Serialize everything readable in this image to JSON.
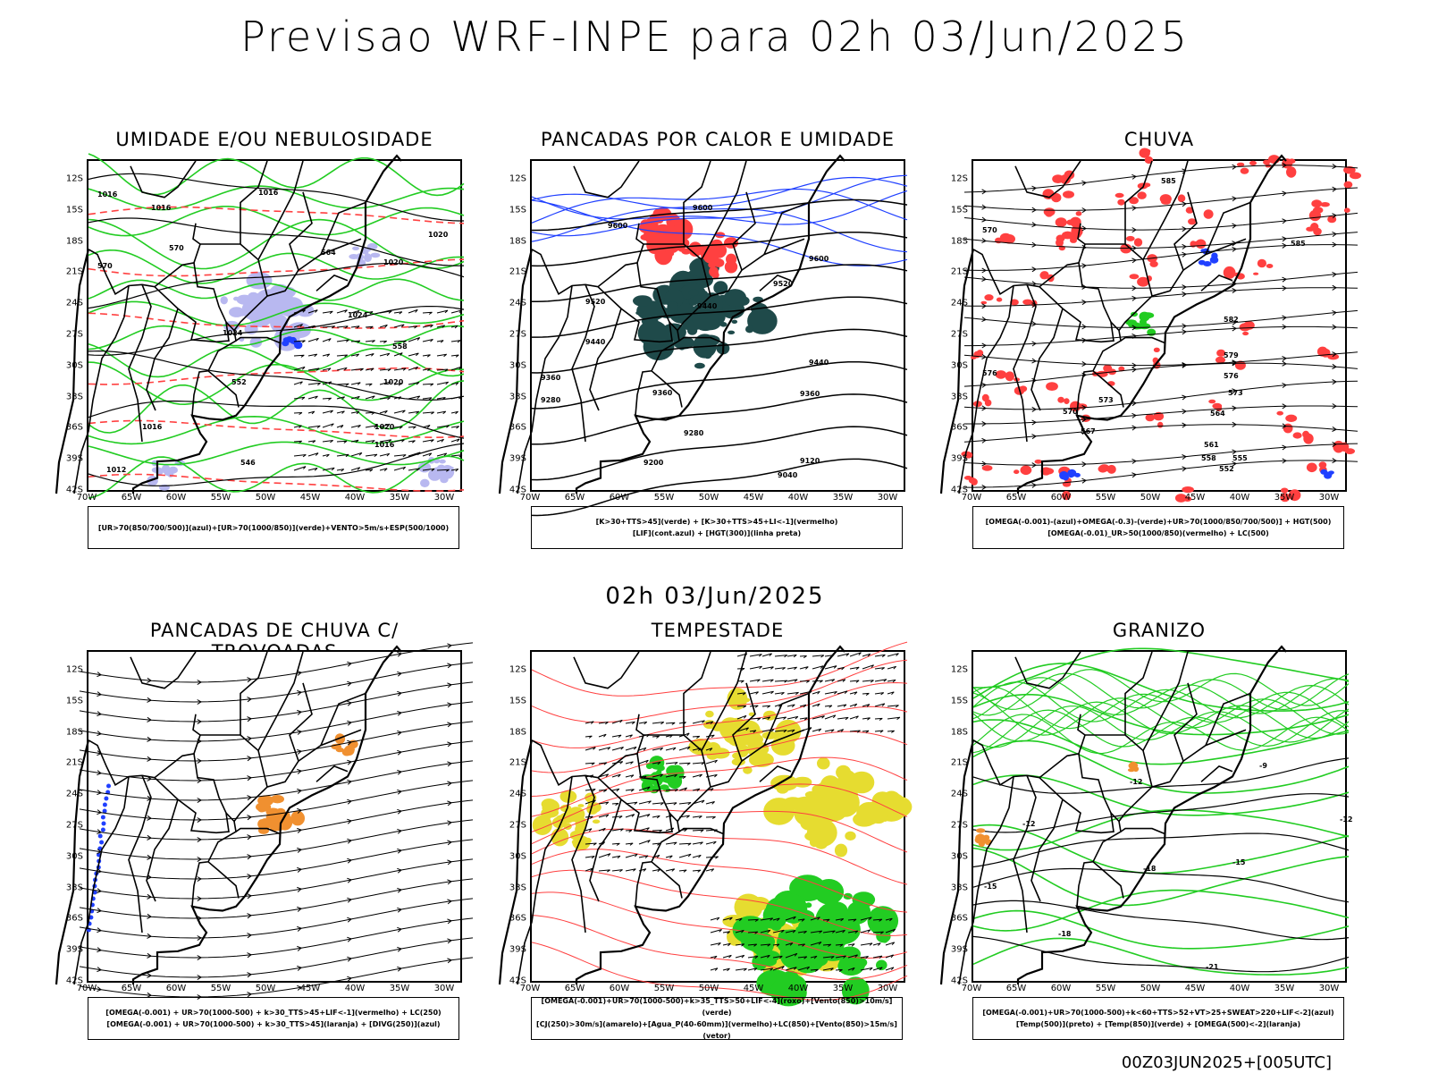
{
  "main_title": "Previsao WRF-INPE  para 02h 03/Jun/2025",
  "mid_stamp": "02h 03/Jun/2025",
  "run_stamp": "00Z03JUN2025+[005UTC]",
  "lat_ticks": [
    "12S",
    "15S",
    "18S",
    "21S",
    "24S",
    "27S",
    "30S",
    "33S",
    "36S",
    "39S",
    "42S"
  ],
  "lon_ticks": [
    "70W",
    "65W",
    "60W",
    "55W",
    "50W",
    "45W",
    "40W",
    "35W",
    "30W"
  ],
  "colors": {
    "green": "#22cc22",
    "red": "#ff4040",
    "blue": "#2040ff",
    "lavender": "#b8b8f0",
    "dark_teal": "#1f4a4a",
    "yellow": "#e6dc30",
    "orange": "#f09030"
  },
  "panels": [
    {
      "title": "UMIDADE E/OU NEBULOSIDADE",
      "legend": [
        "[UR>70(850/700/500)](azul)+[UR>70(1000/850)](verde)+VENTO>5m/s+ESP(500/1000)"
      ],
      "contour_labels": [
        "1016",
        "1016",
        "1016",
        "1020",
        "1020",
        "1024",
        "1024",
        "1020",
        "1020",
        "1016",
        "1012",
        "1016",
        "570",
        "570",
        "564",
        "558",
        "552",
        "546"
      ]
    },
    {
      "title": "PANCADAS POR CALOR E UMIDADE",
      "legend": [
        "[K>30+TTS>45](verde) + [K>30+TTS>45+LI<-1](vermelho)",
        "[LIF](cont.azul) + [HGT(300)](linha preta)"
      ],
      "contour_labels": [
        "9600",
        "9600",
        "9600",
        "9520",
        "9520",
        "9440",
        "9440",
        "9440",
        "9360",
        "9360",
        "9360",
        "9280",
        "9280",
        "9200",
        "9120",
        "9040"
      ]
    },
    {
      "title": "CHUVA",
      "legend": [
        "[OMEGA(-0.001)-(azul)+OMEGA(-0.3)-(verde)+UR>70(1000/850/700/500)] + HGT(500)",
        "[OMEGA(-0.01)_UR>50(1000/850)(vermelho) + LC(500)"
      ],
      "contour_labels": [
        "585",
        "582",
        "579",
        "576",
        "573",
        "570",
        "567",
        "564",
        "561",
        "558",
        "555",
        "552",
        "585",
        "576",
        "573",
        "570"
      ]
    },
    {
      "title": "PANCADAS DE CHUVA C/ TROVOADAS",
      "legend": [
        "[OMEGA(-0.001) + UR>70(1000-500) + k>30_TTS>45+LIF<-1](vermelho) + LC(250)",
        "[OMEGA(-0.001) + UR>70(1000-500) + k>30_TTS>45](laranja) + [DIVG(250)](azul)"
      ],
      "contour_labels": []
    },
    {
      "title": "TEMPESTADE",
      "legend": [
        "[OMEGA(-0.001)+UR>70(1000-500)+k>35_TTS>50+LIF<-4](roxo)+[Vento(850)>10m/s](verde)",
        "[CJ(250)>30m/s](amarelo)+[Agua_P(40-60mm)](vermelho)+LC(850)+[Vento(850)>15m/s](vetor)"
      ],
      "contour_labels": []
    },
    {
      "title": "GRANIZO",
      "legend": [
        "[OMEGA(-0.001)+UR>70(1000-500)+k<60+TTS>52+VT>25+SWEAT>220+LIF<-2](azul)",
        "[Temp(500)](preto) + [Temp(850)](verde) + [OMEGA(500)<-2](laranja)"
      ],
      "contour_labels": [
        "-12",
        "-12",
        "-12",
        "-15",
        "-15",
        "-18",
        "-18",
        "-21",
        "-9"
      ]
    }
  ]
}
